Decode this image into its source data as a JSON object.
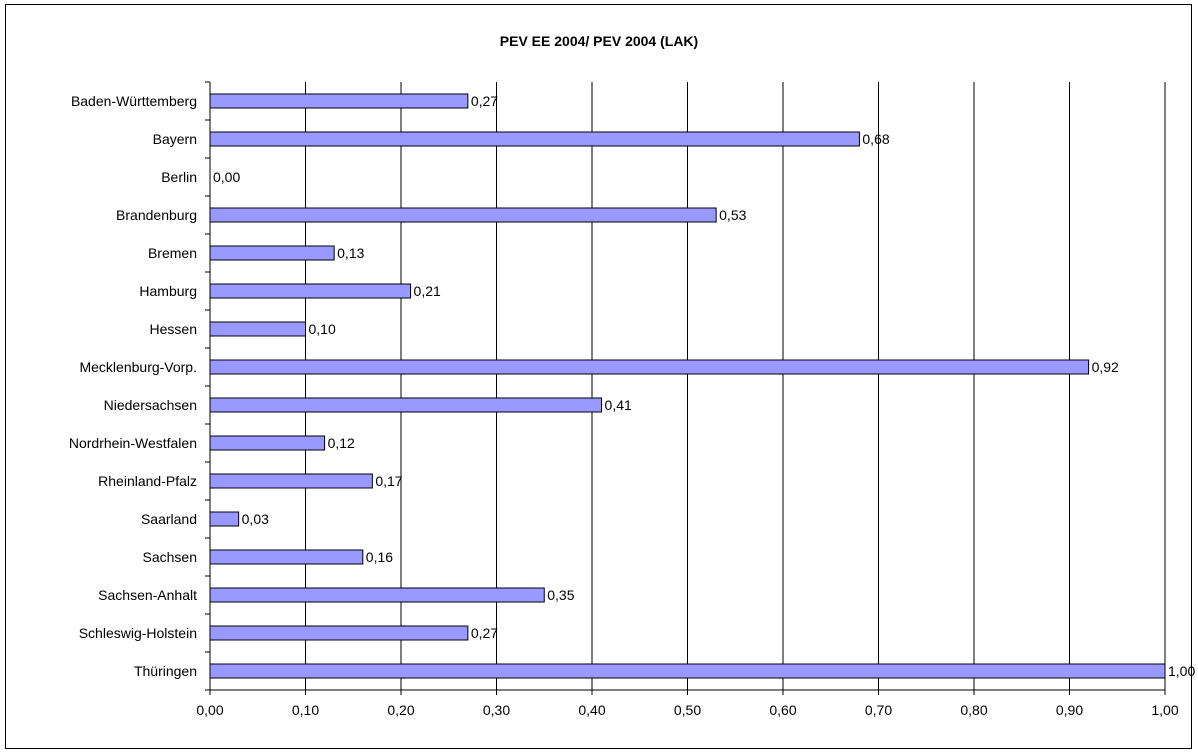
{
  "chart_data": {
    "type": "bar",
    "orientation": "horizontal",
    "title": "PEV EE 2004/ PEV 2004 (LAK)",
    "categories": [
      "Baden-Württemberg",
      "Bayern",
      "Berlin",
      "Brandenburg",
      "Bremen",
      "Hamburg",
      "Hessen",
      "Mecklenburg-Vorp.",
      "Niedersachsen",
      "Nordrhein-Westfalen",
      "Rheinland-Pfalz",
      "Saarland",
      "Sachsen",
      "Sachsen-Anhalt",
      "Schleswig-Holstein",
      "Thüringen"
    ],
    "values": [
      0.27,
      0.68,
      0.0,
      0.53,
      0.13,
      0.21,
      0.1,
      0.92,
      0.41,
      0.12,
      0.17,
      0.03,
      0.16,
      0.35,
      0.27,
      1.0
    ],
    "value_labels": [
      "0,27",
      "0,68",
      "0,00",
      "0,53",
      "0,13",
      "0,21",
      "0,10",
      "0,92",
      "0,41",
      "0,12",
      "0,17",
      "0,03",
      "0,16",
      "0,35",
      "0,27",
      "1,00"
    ],
    "xlim": [
      0,
      1
    ],
    "xticks": [
      0,
      0.1,
      0.2,
      0.3,
      0.4,
      0.5,
      0.6,
      0.7,
      0.8,
      0.9,
      1.0
    ],
    "xtick_labels": [
      "0,00",
      "0,10",
      "0,20",
      "0,30",
      "0,40",
      "0,50",
      "0,60",
      "0,70",
      "0,80",
      "0,90",
      "1,00"
    ],
    "xlabel": "",
    "ylabel": "",
    "grid": "vertical",
    "legend": "none",
    "bar_color": "#9999ff",
    "bar_edge_color": "#000000"
  }
}
